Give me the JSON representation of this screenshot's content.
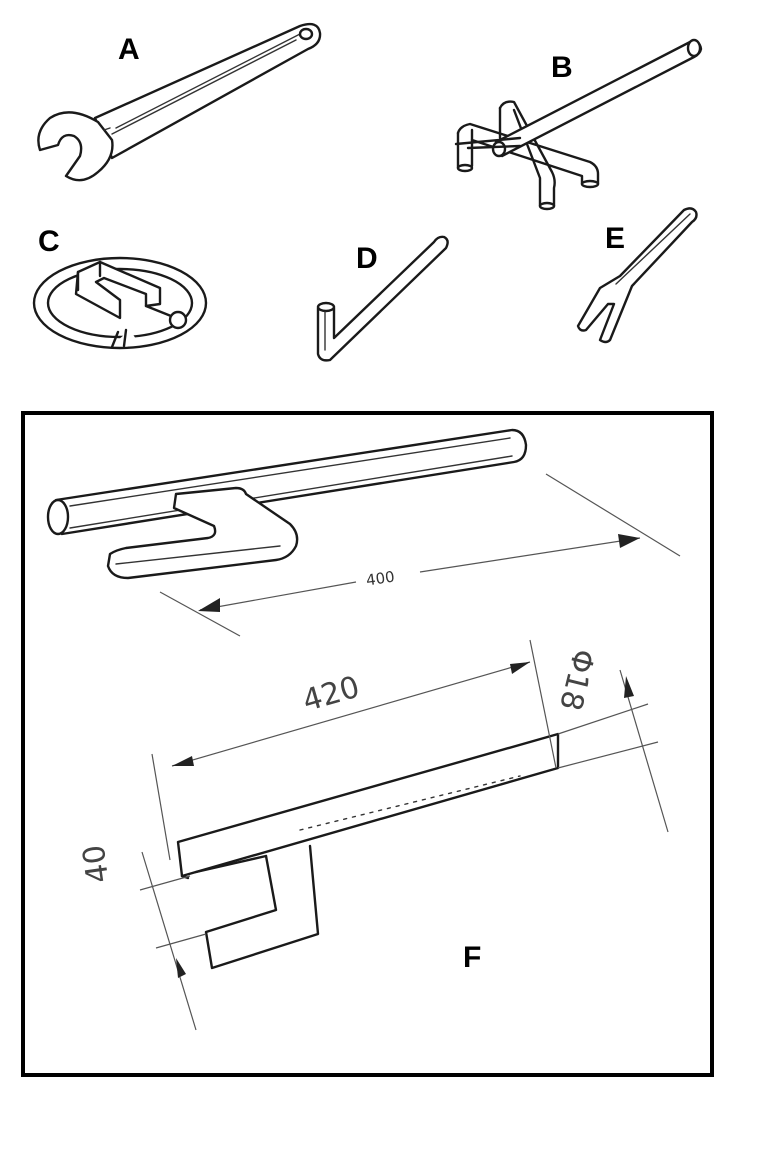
{
  "tools": [
    {
      "id": "A",
      "label": "A",
      "name": "open-end-wrench"
    },
    {
      "id": "B",
      "label": "B",
      "name": "fork-bar-tool"
    },
    {
      "id": "C",
      "label": "C",
      "name": "ring-clamp"
    },
    {
      "id": "D",
      "label": "D",
      "name": "l-bar"
    },
    {
      "id": "E",
      "label": "E",
      "name": "fork-wrench"
    },
    {
      "id": "F",
      "label": "F",
      "name": "hook-spanner"
    }
  ],
  "drawing_f": {
    "dim_overall": "400",
    "dim_bar_length": "420",
    "dim_bar_diameter": "Φ18",
    "dim_hook_width": "40"
  }
}
